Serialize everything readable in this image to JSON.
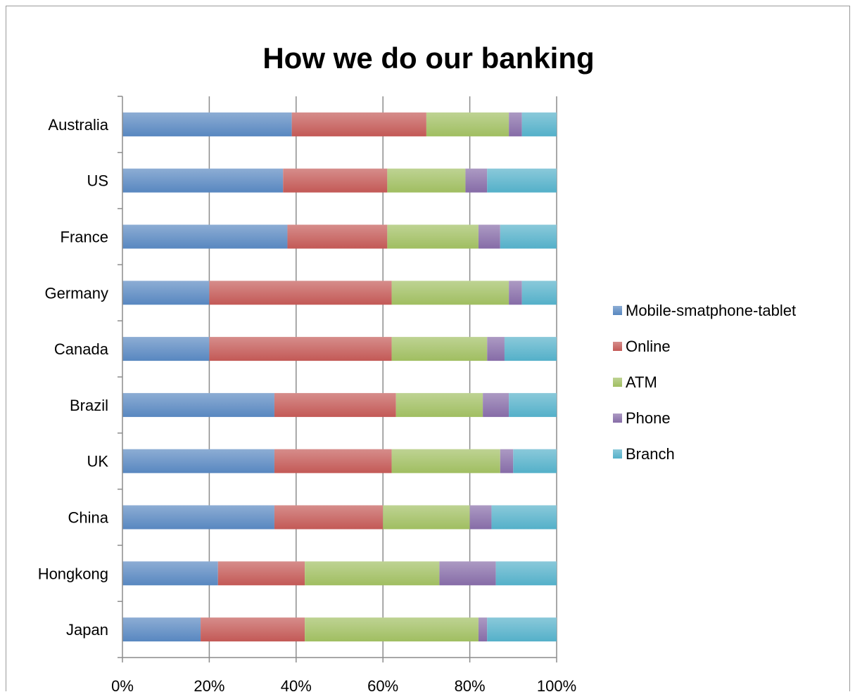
{
  "chart_data": {
    "type": "bar",
    "orientation": "horizontal",
    "stacked": "percent",
    "title": "How we do our banking",
    "categories": [
      "Australia",
      "US",
      "France",
      "Germany",
      "Canada",
      "Brazil",
      "UK",
      "China",
      "Hongkong",
      "Japan"
    ],
    "series": [
      {
        "name": "Mobile-smatphone-tablet",
        "color": "#4f81bd",
        "values": [
          39,
          37,
          38,
          20,
          20,
          35,
          35,
          35,
          22,
          18
        ]
      },
      {
        "name": "Online",
        "color": "#c0504d",
        "values": [
          31,
          24,
          23,
          42,
          42,
          28,
          27,
          25,
          20,
          24
        ]
      },
      {
        "name": "ATM",
        "color": "#9bbb59",
        "values": [
          19,
          18,
          21,
          27,
          22,
          20,
          25,
          20,
          31,
          40
        ]
      },
      {
        "name": "Phone",
        "color": "#8064a2",
        "values": [
          3,
          5,
          5,
          3,
          4,
          6,
          3,
          5,
          13,
          2
        ]
      },
      {
        "name": "Branch",
        "color": "#4bacc6",
        "values": [
          8,
          16,
          13,
          8,
          12,
          11,
          10,
          15,
          14,
          16
        ]
      }
    ],
    "xticks": [
      "0%",
      "20%",
      "40%",
      "60%",
      "80%",
      "100%"
    ],
    "xlim": [
      0,
      100
    ],
    "grid": true,
    "legend": "right"
  }
}
